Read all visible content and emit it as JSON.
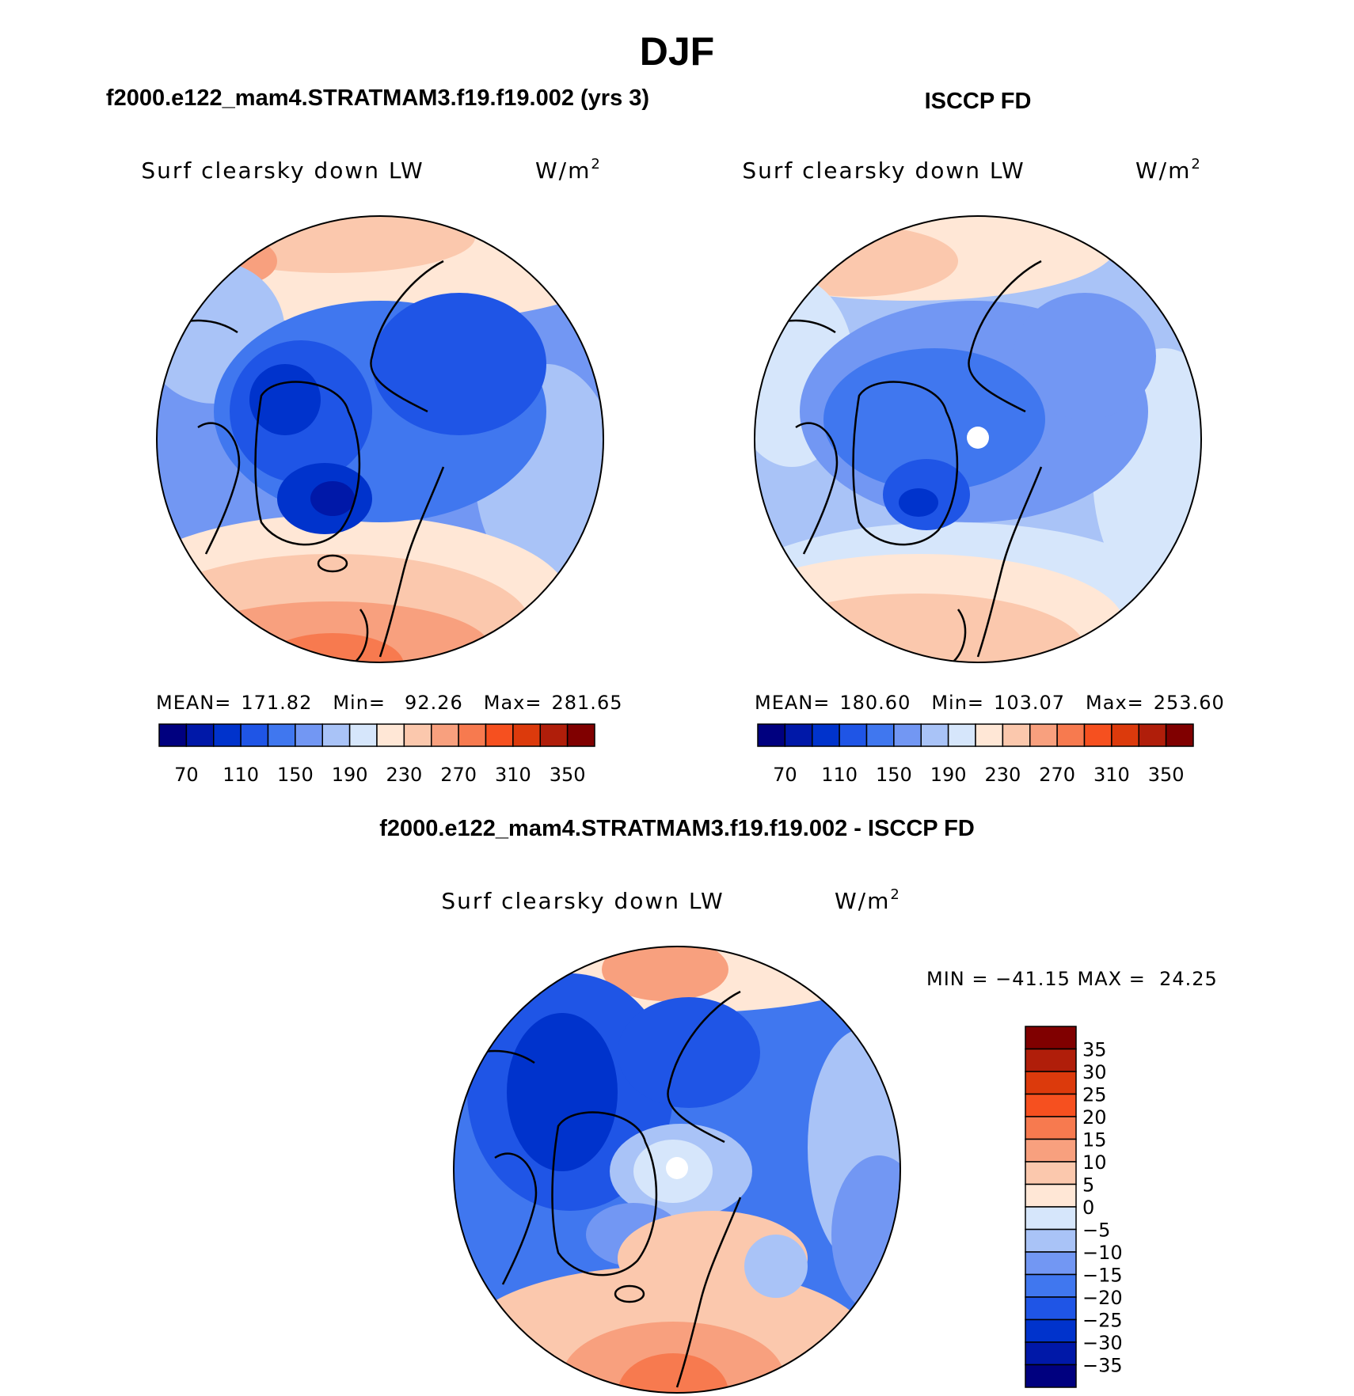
{
  "title": "DJF",
  "colors": {
    "levels": [
      "#00007f",
      "#0018a8",
      "#0033cc",
      "#1f55e6",
      "#4077ef",
      "#7297f3",
      "#a9c3f7",
      "#d6e6fb",
      "#ffe7d6",
      "#fbc8ad",
      "#f8a07e",
      "#f77a4f",
      "#f6501f",
      "#dc3a0c",
      "#b01e0a",
      "#800000"
    ],
    "diff_levels": [
      "#00007f",
      "#0018a8",
      "#0033cc",
      "#1f55e6",
      "#4077ef",
      "#7297f3",
      "#a9c3f7",
      "#d6e6fb",
      "#ffe7d6",
      "#fbc8ad",
      "#f8a07e",
      "#f77a4f",
      "#f6501f",
      "#dc3a0c",
      "#b01e0a",
      "#800000"
    ]
  },
  "chart_data": [
    {
      "type": "heatmap",
      "projection": "polar-stereographic-north",
      "header": "f2000.e122_mam4.STRATMAM3.f19.f19.002 (yrs 3)",
      "variable": "Surf clearsky down LW",
      "units": "W/m",
      "units_sup": "2",
      "stats": {
        "mean_label": "MEAN=",
        "mean": "171.82",
        "min_label": "Min=",
        "min": "92.26",
        "max_label": "Max=",
        "max": "281.65"
      },
      "colorbar_ticks": [
        "70",
        "110",
        "150",
        "190",
        "230",
        "270",
        "310",
        "350"
      ],
      "pole_mask": false
    },
    {
      "type": "heatmap",
      "projection": "polar-stereographic-north",
      "header": "ISCCP FD",
      "variable": "Surf clearsky down LW",
      "units": "W/m",
      "units_sup": "2",
      "stats": {
        "mean_label": "MEAN=",
        "mean": "180.60",
        "min_label": "Min=",
        "min": "103.07",
        "max_label": "Max=",
        "max": "253.60"
      },
      "colorbar_ticks": [
        "70",
        "110",
        "150",
        "190",
        "230",
        "270",
        "310",
        "350"
      ],
      "pole_mask": true
    },
    {
      "type": "heatmap",
      "projection": "polar-stereographic-north",
      "header": "f2000.e122_mam4.STRATMAM3.f19.f19.002 - ISCCP FD",
      "variable": "Surf clearsky down LW",
      "units": "W/m",
      "units_sup": "2",
      "stats_text": "MIN = −41.15 MAX =  24.25",
      "colorbar_ticks": [
        "35",
        "30",
        "25",
        "20",
        "15",
        "10",
        "5",
        "0",
        "−5",
        "−10",
        "−15",
        "−20",
        "−25",
        "−30",
        "−35"
      ],
      "pole_mask": true
    }
  ]
}
